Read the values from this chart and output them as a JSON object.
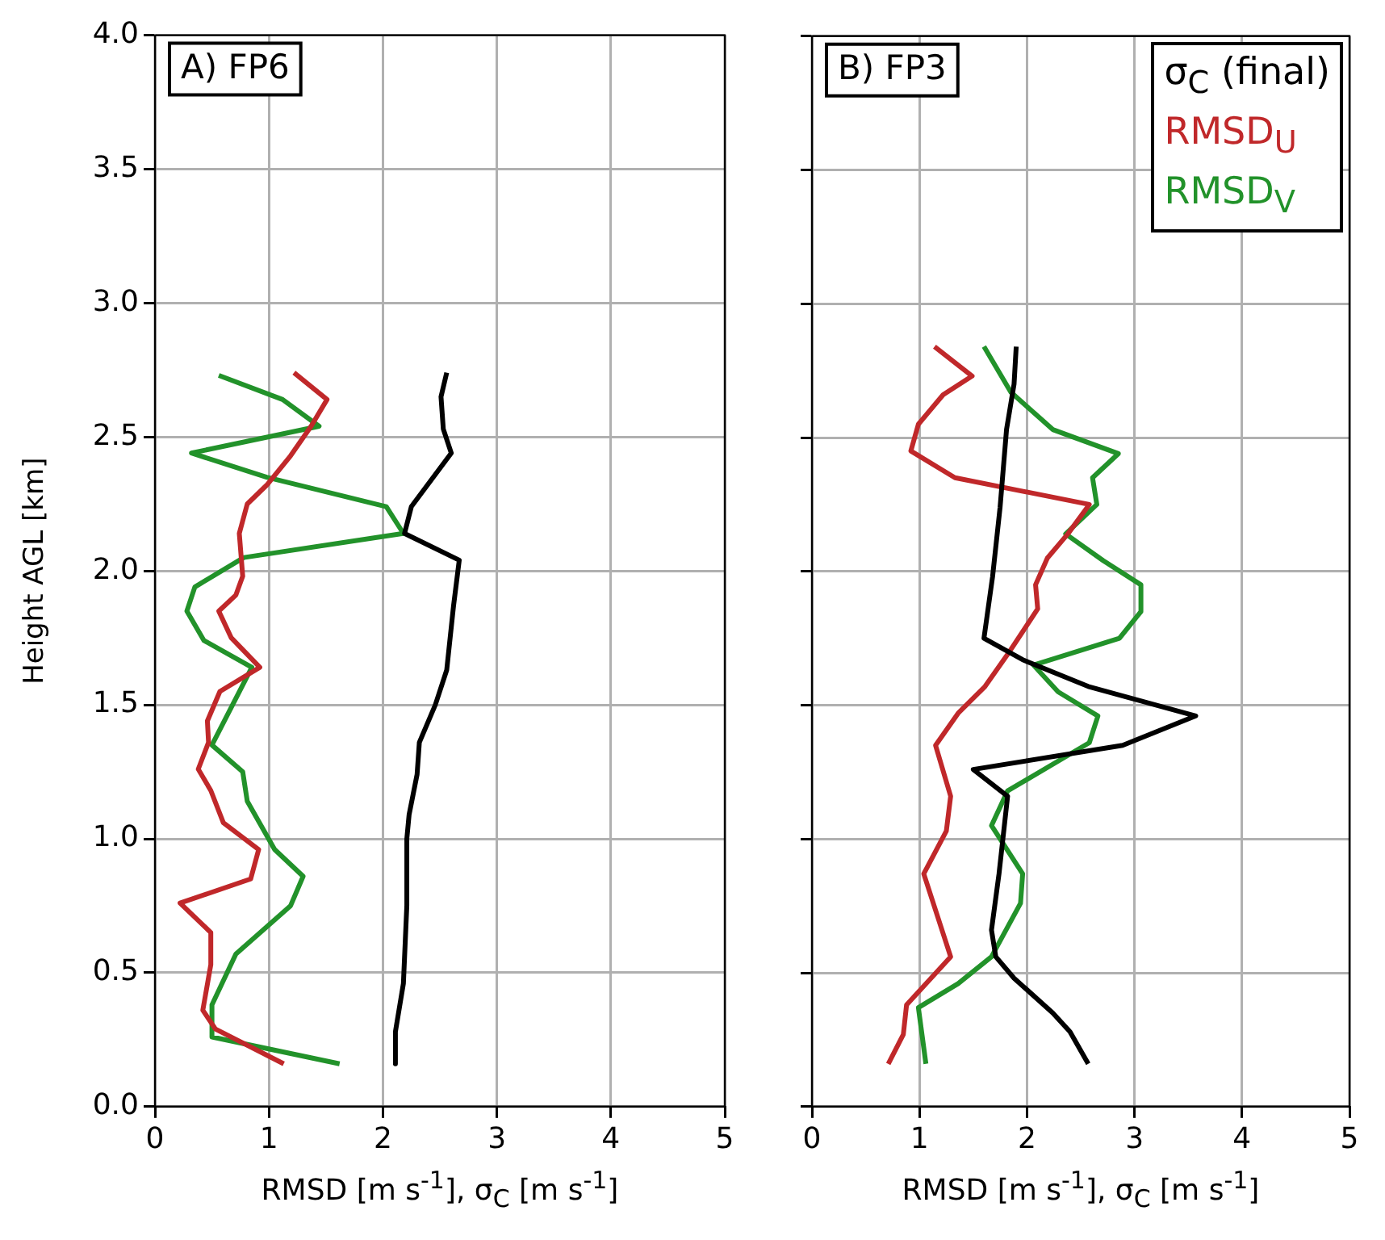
{
  "chart_data": [
    {
      "type": "line",
      "title": "A) FP6",
      "xlabel": "RMSD [m s$^{-1}$], σ$_{C}$ [m s$^{-1}$]",
      "ylabel": "Height AGL [km]",
      "xlim": [
        0,
        5
      ],
      "xticks": [
        0,
        1,
        2,
        3,
        4,
        5
      ],
      "ylim": [
        0,
        4
      ],
      "yticks": [
        {
          "value": 0,
          "label": "0.0"
        },
        0.5,
        {
          "value": 1,
          "label": "1.0"
        },
        1.5,
        {
          "value": 2,
          "label": "2.0"
        },
        2.5,
        {
          "value": 3,
          "label": "3.0"
        },
        3.5,
        {
          "value": 4,
          "label": "4.0"
        }
      ],
      "grid": true,
      "legend": false,
      "series": [
        {
          "color": "#000000",
          "x": [
            2.56,
            2.51,
            2.53,
            2.6,
            2.39,
            2.25,
            2.19,
            2.67,
            2.62,
            2.56,
            2.46,
            2.32,
            2.3,
            2.23,
            2.21,
            2.21,
            2.18,
            2.11,
            2.11
          ],
          "values": [
            2.74,
            2.65,
            2.53,
            2.44,
            2.32,
            2.24,
            2.14,
            2.04,
            1.87,
            1.63,
            1.5,
            1.36,
            1.24,
            1.09,
            1.0,
            0.75,
            0.46,
            0.28,
            0.16
          ]
        },
        {
          "color": "#c0282a",
          "x": [
            1.22,
            1.51,
            1.37,
            1.19,
            0.98,
            0.81,
            0.74,
            0.77,
            0.71,
            0.56,
            0.67,
            0.92,
            0.57,
            0.46,
            0.47,
            0.38,
            0.49,
            0.6,
            0.91,
            0.84,
            0.22,
            0.49,
            0.49,
            0.42,
            0.53,
            1.13
          ],
          "values": [
            2.74,
            2.64,
            2.54,
            2.43,
            2.32,
            2.25,
            2.14,
            1.98,
            1.91,
            1.85,
            1.75,
            1.64,
            1.55,
            1.44,
            1.36,
            1.26,
            1.18,
            1.06,
            0.96,
            0.85,
            0.76,
            0.65,
            0.53,
            0.36,
            0.29,
            0.16
          ]
        },
        {
          "color": "#22922a",
          "x": [
            0.56,
            1.12,
            1.44,
            0.32,
            0.98,
            2.03,
            2.18,
            0.78,
            0.35,
            0.28,
            0.43,
            0.85,
            0.5,
            0.77,
            0.81,
            1.05,
            1.3,
            1.19,
            0.71,
            0.5,
            0.5,
            1.62
          ],
          "values": [
            2.73,
            2.64,
            2.54,
            2.44,
            2.35,
            2.24,
            2.14,
            2.05,
            1.94,
            1.85,
            1.74,
            1.64,
            1.35,
            1.25,
            1.14,
            0.96,
            0.86,
            0.75,
            0.57,
            0.38,
            0.26,
            0.16
          ]
        }
      ]
    },
    {
      "type": "line",
      "title": "B) FP3",
      "xlabel": "RMSD [m s$^{-1}$], σ$_{C}$ [m s$^{-1}$]",
      "xlim": [
        0,
        5
      ],
      "xticks": [
        0,
        1,
        2,
        3,
        4,
        5
      ],
      "ylim": [
        0,
        4
      ],
      "yticks": [
        0,
        0.5,
        1,
        1.5,
        2,
        2.5,
        3,
        3.5,
        4
      ],
      "tick_labels": "x",
      "grid": true,
      "legend": "top right",
      "series": [
        {
          "name": "σ$_{C}$ (final)",
          "color": "#000000",
          "x": [
            1.9,
            1.88,
            1.81,
            1.75,
            1.68,
            1.6,
            1.96,
            2.57,
            3.57,
            2.89,
            1.5,
            1.82,
            1.74,
            1.67,
            1.71,
            1.88,
            2.24,
            2.4,
            2.57
          ],
          "values": [
            2.84,
            2.7,
            2.53,
            2.24,
            1.98,
            1.75,
            1.67,
            1.57,
            1.46,
            1.35,
            1.26,
            1.16,
            0.87,
            0.66,
            0.56,
            0.48,
            0.35,
            0.28,
            0.16
          ]
        },
        {
          "name": "RMSD$_{U}$",
          "color": "#c0282a",
          "x": [
            1.14,
            1.49,
            1.22,
            0.99,
            0.92,
            1.33,
            2.58,
            2.38,
            2.19,
            2.08,
            2.1,
            1.82,
            1.61,
            1.36,
            1.15,
            1.29,
            1.25,
            1.04,
            1.29,
            0.88,
            0.85,
            0.71
          ],
          "values": [
            2.84,
            2.73,
            2.66,
            2.55,
            2.45,
            2.35,
            2.25,
            2.14,
            2.05,
            1.95,
            1.86,
            1.69,
            1.57,
            1.47,
            1.35,
            1.16,
            1.03,
            0.87,
            0.56,
            0.38,
            0.27,
            0.16
          ]
        },
        {
          "name": "RMSD$_{V}$",
          "color": "#22922a",
          "x": [
            1.6,
            1.85,
            2.24,
            2.85,
            2.61,
            2.65,
            2.36,
            2.71,
            3.06,
            3.06,
            2.86,
            2.06,
            2.29,
            2.66,
            2.58,
            1.82,
            1.67,
            1.96,
            1.94,
            1.67,
            1.36,
            0.99,
            1.06
          ],
          "values": [
            2.84,
            2.67,
            2.53,
            2.44,
            2.35,
            2.25,
            2.14,
            2.04,
            1.95,
            1.85,
            1.75,
            1.65,
            1.55,
            1.46,
            1.36,
            1.18,
            1.05,
            0.87,
            0.76,
            0.56,
            0.46,
            0.37,
            0.16
          ]
        }
      ]
    }
  ]
}
